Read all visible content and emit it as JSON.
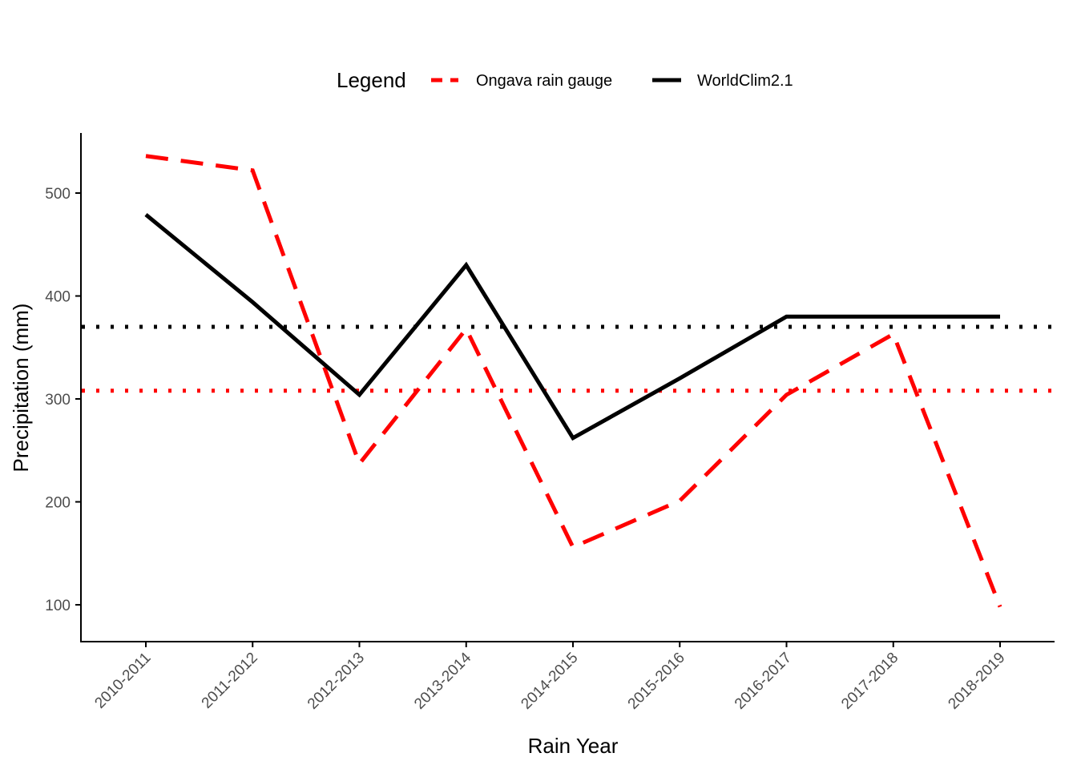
{
  "chart_data": {
    "type": "line",
    "xlabel": "Rain Year",
    "ylabel": "Precipitation (mm)",
    "categories": [
      "2010-2011",
      "2011-2012",
      "2012-2013",
      "2013-2014",
      "2014-2015",
      "2015-2016",
      "2016-2017",
      "2017-2018",
      "2018-2019"
    ],
    "ylim": [
      50,
      560
    ],
    "yticks": [
      100,
      200,
      300,
      400,
      500
    ],
    "grid": false,
    "legend": {
      "title": "Legend",
      "placement": "top",
      "entries": [
        "Ongava rain gauge",
        "WorldClim2.1"
      ]
    },
    "series": [
      {
        "name": "Ongava rain gauge",
        "color": "#ff0000",
        "style": "dashed",
        "values": [
          536,
          522,
          237,
          368,
          156,
          201,
          304,
          363,
          98
        ]
      },
      {
        "name": "WorldClim2.1",
        "color": "#000000",
        "style": "solid",
        "values": [
          479,
          394,
          304,
          430,
          262,
          320,
          380,
          380,
          380
        ]
      }
    ],
    "reference_lines": [
      {
        "y": 370,
        "color": "#000000",
        "style": "dotted"
      },
      {
        "y": 308,
        "color": "#ff0000",
        "style": "dotted"
      }
    ]
  }
}
